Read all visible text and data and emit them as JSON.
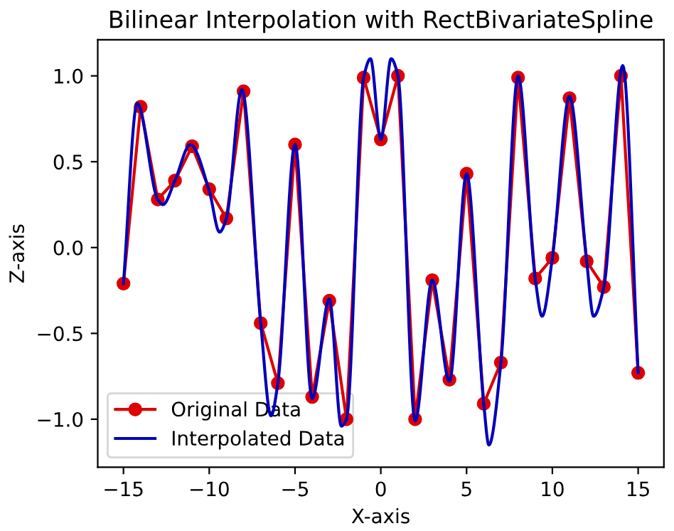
{
  "chart_data": {
    "type": "line",
    "title": "Bilinear Interpolation with RectBivariateSpline",
    "xlabel": "X-axis",
    "ylabel": "Z-axis",
    "series": [
      {
        "name": "Original Data",
        "color": "#dd0000",
        "marker": "circle",
        "x": [
          -15,
          -14,
          -13,
          -12,
          -11,
          -10,
          -9,
          -8,
          -7,
          -6,
          -5,
          -4,
          -3,
          -2,
          -1,
          0,
          1,
          2,
          3,
          4,
          5,
          6,
          7,
          8,
          9,
          10,
          11,
          12,
          13,
          14,
          15
        ],
        "values": [
          -0.21,
          0.82,
          0.28,
          0.39,
          0.59,
          0.34,
          0.17,
          0.91,
          -0.44,
          -0.79,
          0.6,
          -0.87,
          -0.31,
          -1.0,
          0.99,
          0.63,
          1.0,
          -1.0,
          -0.19,
          -0.77,
          0.43,
          -0.91,
          -0.67,
          0.99,
          -0.18,
          -0.06,
          0.87,
          -0.08,
          -0.23,
          1.0,
          -0.73
        ]
      },
      {
        "name": "Interpolated Data",
        "color": "#0000bb",
        "marker": "none",
        "x": [
          -15,
          -14.2,
          -13,
          -12.7,
          -12,
          -11.1,
          -10,
          -9.4,
          -9,
          -8.1,
          -7,
          -6.4,
          -6,
          -5,
          -4,
          -3,
          -2.3,
          -2,
          -1,
          -0.6,
          0,
          0.6,
          1,
          2,
          3,
          4,
          5,
          6,
          6.3,
          7,
          8,
          9,
          9.4,
          10,
          11,
          12,
          12.4,
          13,
          14.1,
          15
        ],
        "values": [
          -0.21,
          0.84,
          0.28,
          0.25,
          0.39,
          0.6,
          0.33,
          0.09,
          0.17,
          0.92,
          -0.44,
          -0.98,
          -0.79,
          0.6,
          -0.88,
          -0.3,
          -1.04,
          -1.0,
          0.99,
          1.1,
          0.63,
          1.1,
          1.0,
          -1.01,
          -0.19,
          -0.78,
          0.43,
          -0.91,
          -1.15,
          -0.67,
          1.0,
          -0.18,
          -0.4,
          -0.06,
          0.88,
          -0.08,
          -0.4,
          -0.23,
          1.06,
          -0.73
        ]
      }
    ],
    "xlim": [
      -16.5,
      16.5
    ],
    "ylim": [
      -1.28,
      1.21
    ],
    "xticks": [
      {
        "value": -15,
        "label": "−15"
      },
      {
        "value": -10,
        "label": "−10"
      },
      {
        "value": -5,
        "label": "−5"
      },
      0,
      5,
      10,
      15
    ],
    "yticks": [
      {
        "value": -1.0,
        "label": "−1.0"
      },
      {
        "value": -0.5,
        "label": "−0.5"
      },
      {
        "value": 0.0,
        "label": "0.0"
      },
      {
        "value": 0.5,
        "label": "0.5"
      },
      {
        "value": 1.0,
        "label": "1.0"
      }
    ],
    "legend": "lower left",
    "grid": false
  }
}
